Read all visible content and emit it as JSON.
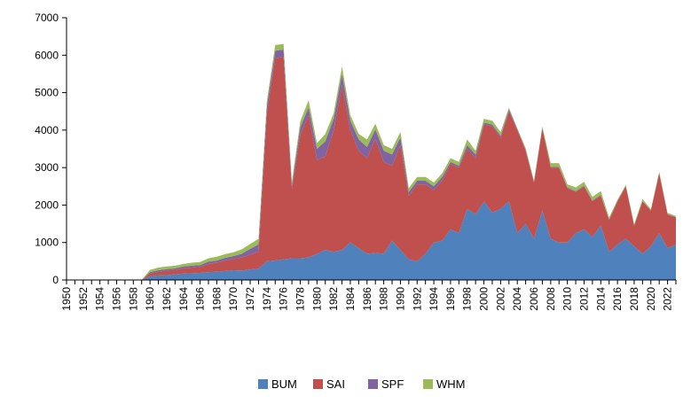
{
  "chart_data": {
    "type": "area",
    "stacked": true,
    "title": "",
    "xlabel": "",
    "ylabel": "",
    "ylim": [
      0,
      7000
    ],
    "yticks": [
      0,
      1000,
      2000,
      3000,
      4000,
      5000,
      6000,
      7000
    ],
    "ytick_labels": [
      "0",
      "1000",
      "2000",
      "3000",
      "4000",
      "5000",
      "6000",
      "7000"
    ],
    "xlim": [
      1950,
      2023
    ],
    "xtick_labels": [
      "1950",
      "1952",
      "1954",
      "1956",
      "1958",
      "1960",
      "1962",
      "1964",
      "1966",
      "1968",
      "1970",
      "1972",
      "1974",
      "1976",
      "1978",
      "1980",
      "1982",
      "1984",
      "1986",
      "1988",
      "1990",
      "1992",
      "1994",
      "1996",
      "1998",
      "2000",
      "2002",
      "2004",
      "2006",
      "2008",
      "2010",
      "2012",
      "2014",
      "2016",
      "2018",
      "2020",
      "2022"
    ],
    "grid": false,
    "legend_position": "bottom",
    "x": [
      1950,
      1951,
      1952,
      1953,
      1954,
      1955,
      1956,
      1957,
      1958,
      1959,
      1960,
      1961,
      1962,
      1963,
      1964,
      1965,
      1966,
      1967,
      1968,
      1969,
      1970,
      1971,
      1972,
      1973,
      1974,
      1975,
      1976,
      1977,
      1978,
      1979,
      1980,
      1981,
      1982,
      1983,
      1984,
      1985,
      1986,
      1987,
      1988,
      1989,
      1990,
      1991,
      1992,
      1993,
      1994,
      1995,
      1996,
      1997,
      1998,
      1999,
      2000,
      2001,
      2002,
      2003,
      2004,
      2005,
      2006,
      2007,
      2008,
      2009,
      2010,
      2011,
      2012,
      2013,
      2014,
      2015,
      2016,
      2017,
      2018,
      2019,
      2020,
      2021,
      2022,
      2023
    ],
    "series": [
      {
        "name": "BUM",
        "color": "#4f81bd",
        "values": [
          0,
          0,
          0,
          0,
          0,
          0,
          0,
          0,
          0,
          0,
          100,
          120,
          130,
          150,
          170,
          180,
          190,
          210,
          220,
          240,
          260,
          250,
          280,
          300,
          500,
          520,
          550,
          580,
          580,
          600,
          700,
          800,
          750,
          800,
          1000,
          850,
          700,
          720,
          700,
          1050,
          800,
          550,
          500,
          700,
          1000,
          1050,
          1350,
          1250,
          1900,
          1750,
          2100,
          1800,
          1900,
          2100,
          1250,
          1500,
          1100,
          1850,
          1100,
          1000,
          1000,
          1250,
          1350,
          1150,
          1450,
          750,
          950,
          1100,
          900,
          700,
          900,
          1250,
          850,
          950
        ]
      },
      {
        "name": "SAI",
        "color": "#c0504d",
        "values": [
          0,
          0,
          0,
          0,
          0,
          0,
          0,
          0,
          0,
          0,
          80,
          100,
          120,
          120,
          140,
          150,
          160,
          220,
          240,
          280,
          300,
          350,
          400,
          450,
          3950,
          5400,
          5400,
          1850,
          3300,
          3800,
          2500,
          2500,
          3250,
          4400,
          3000,
          2600,
          2550,
          3050,
          2450,
          2000,
          2800,
          1700,
          2050,
          1850,
          1400,
          1600,
          1750,
          1750,
          1600,
          1500,
          2050,
          2300,
          1900,
          2400,
          2750,
          1950,
          1500,
          2200,
          1900,
          2000,
          1450,
          1100,
          1150,
          950,
          800,
          850,
          1150,
          1400,
          550,
          1400,
          950,
          1600,
          900,
          720
        ]
      },
      {
        "name": "SPF",
        "color": "#8064a2",
        "values": [
          0,
          0,
          0,
          0,
          0,
          0,
          0,
          0,
          0,
          0,
          30,
          40,
          40,
          40,
          50,
          50,
          50,
          60,
          60,
          70,
          80,
          100,
          150,
          200,
          200,
          200,
          200,
          100,
          200,
          200,
          300,
          400,
          300,
          300,
          250,
          300,
          300,
          250,
          300,
          300,
          200,
          100,
          100,
          100,
          100,
          100,
          50,
          50,
          100,
          100,
          50,
          50,
          50,
          50,
          30,
          30,
          20,
          20,
          20,
          20,
          20,
          20,
          20,
          20,
          20,
          20,
          10,
          10,
          10,
          10,
          10,
          10,
          10,
          10
        ]
      },
      {
        "name": "WHM",
        "color": "#9bbb59",
        "values": [
          0,
          0,
          0,
          0,
          0,
          0,
          0,
          0,
          0,
          0,
          60,
          70,
          70,
          70,
          70,
          80,
          80,
          90,
          100,
          100,
          100,
          120,
          130,
          150,
          120,
          150,
          150,
          100,
          150,
          200,
          150,
          200,
          150,
          200,
          150,
          150,
          200,
          150,
          150,
          150,
          150,
          100,
          100,
          100,
          100,
          100,
          100,
          100,
          150,
          100,
          100,
          100,
          100,
          50,
          20,
          40,
          30,
          30,
          100,
          100,
          80,
          100,
          100,
          100,
          100,
          50,
          30,
          30,
          30,
          50,
          30,
          30,
          30,
          30
        ]
      }
    ]
  }
}
